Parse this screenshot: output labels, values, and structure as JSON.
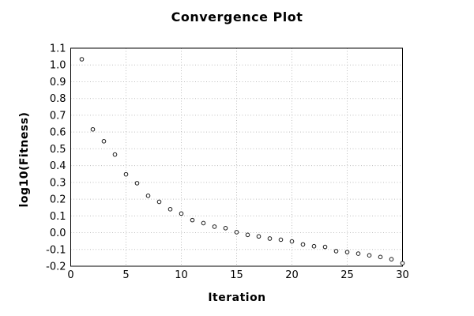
{
  "chart_data": {
    "type": "scatter",
    "title": "Convergence Plot",
    "xlabel": "Iteration",
    "ylabel": "log10(Fitness)",
    "xlim": [
      0,
      30
    ],
    "ylim": [
      -0.2,
      1.1
    ],
    "xticks": [
      "0",
      "5",
      "10",
      "15",
      "20",
      "25",
      "30"
    ],
    "yticks": [
      "-0.2",
      "-0.1",
      "0.0",
      "0.1",
      "0.2",
      "0.3",
      "0.4",
      "0.5",
      "0.6",
      "0.7",
      "0.8",
      "0.9",
      "1.0",
      "1.1"
    ],
    "grid": "dotted",
    "legend": "none",
    "marker": "open-circle",
    "colors": {
      "background": "#ffffff",
      "axis": "#000000",
      "grid": "#bfbfbf",
      "marker_stroke": "#1a1a1a",
      "marker_fill": "#ffffff",
      "text": "#000000"
    },
    "x": [
      1,
      2,
      3,
      4,
      5,
      6,
      7,
      8,
      9,
      10,
      11,
      12,
      13,
      14,
      15,
      16,
      17,
      18,
      19,
      20,
      21,
      22,
      23,
      24,
      25,
      26,
      27,
      28,
      29,
      30
    ],
    "y": [
      1.034,
      0.616,
      0.545,
      0.466,
      0.348,
      0.295,
      0.22,
      0.184,
      0.14,
      0.114,
      0.075,
      0.057,
      0.036,
      0.027,
      0.003,
      -0.013,
      -0.022,
      -0.035,
      -0.042,
      -0.052,
      -0.07,
      -0.081,
      -0.085,
      -0.11,
      -0.116,
      -0.125,
      -0.135,
      -0.145,
      -0.158,
      -0.182
    ]
  }
}
